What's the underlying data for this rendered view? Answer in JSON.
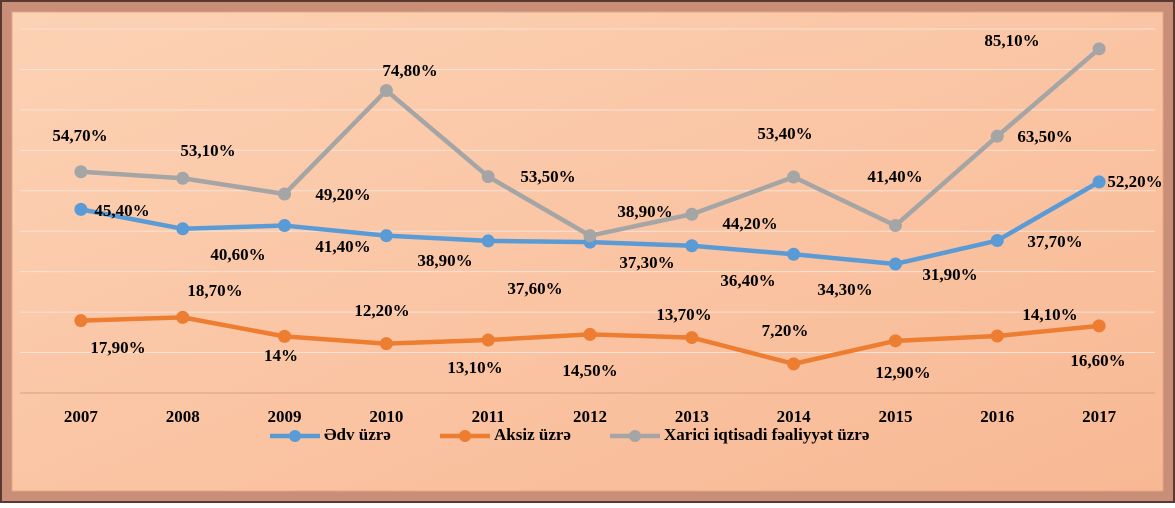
{
  "chart_data": {
    "type": "line",
    "categories": [
      "2007",
      "2008",
      "2009",
      "2010",
      "2011",
      "2012",
      "2013",
      "2014",
      "2015",
      "2016",
      "2017"
    ],
    "series": [
      {
        "name": "Ədv üzrə",
        "color": "#5b9bd5",
        "values": [
          45.4,
          40.6,
          41.4,
          38.9,
          37.6,
          37.3,
          36.4,
          34.3,
          31.9,
          37.7,
          52.2
        ],
        "value_labels": [
          "45,40%",
          "40,60%",
          "41,40%",
          "38,90%",
          "37,60%",
          "37,30%",
          "36,40%",
          "34,30%",
          "31,90%",
          "37,70%",
          "52,20%"
        ]
      },
      {
        "name": "Aksiz üzrə",
        "color": "#ed7d31",
        "values": [
          17.9,
          18.7,
          14,
          12.2,
          13.1,
          14.5,
          13.7,
          7.2,
          12.9,
          14.1,
          16.6
        ],
        "value_labels": [
          "17,90%",
          "18,70%",
          "14%",
          "12,20%",
          "13,10%",
          "14,50%",
          "13,70%",
          "7,20%",
          "12,90%",
          "14,10%",
          "16,60%"
        ]
      },
      {
        "name": "Xarici iqtisadi fəaliyyət üzrə",
        "color": "#a5a5a5",
        "values": [
          54.7,
          53.1,
          49.2,
          74.8,
          53.5,
          38.9,
          44.2,
          53.4,
          41.4,
          63.5,
          85.1
        ],
        "value_labels": [
          "54,70%",
          "53,10%",
          "49,20%",
          "74,80%",
          "53,50%",
          "38,90%",
          "44,20%",
          "53,40%",
          "41,40%",
          "63,50%",
          "85,10%"
        ]
      }
    ],
    "ylim": [
      0,
      90
    ],
    "yticks": [
      0,
      10,
      20,
      30,
      40,
      50,
      60,
      70,
      80,
      90
    ],
    "grid": true,
    "legend": "bottom"
  }
}
